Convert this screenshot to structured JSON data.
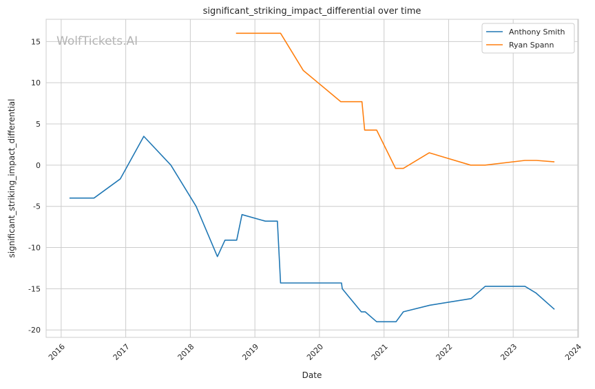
{
  "chart_data": {
    "type": "line",
    "title": "significant_striking_impact_differential over time",
    "xlabel": "Date",
    "ylabel": "significant_striking_impact_differential",
    "xlim": [
      "2015-10-08",
      "2024-01-05"
    ],
    "ylim": [
      -20.9,
      17.7
    ],
    "x_ticks": [
      "2016",
      "2017",
      "2018",
      "2019",
      "2020",
      "2021",
      "2022",
      "2023",
      "2024"
    ],
    "y_ticks": [
      -20,
      -15,
      -10,
      -5,
      0,
      5,
      10,
      15
    ],
    "grid": true,
    "legend_placement": "top-right",
    "watermark": "WolfTickets.AI",
    "series": [
      {
        "name": "Anthony Smith",
        "color": "#1f77b4",
        "x": [
          "2016-02-17",
          "2016-07-05",
          "2016-12-01",
          "2017-04-13",
          "2017-09-13",
          "2018-02-03",
          "2018-06-03",
          "2018-07-16",
          "2018-09-20",
          "2018-10-20",
          "2019-03-01",
          "2019-05-08",
          "2019-05-26",
          "2020-05-05",
          "2020-05-09",
          "2020-08-25",
          "2020-09-16",
          "2020-11-20",
          "2021-03-10",
          "2021-04-20",
          "2021-09-17",
          "2022-05-08",
          "2022-07-27",
          "2023-03-08",
          "2023-05-09",
          "2023-08-22"
        ],
        "y": [
          -4.0,
          -4.0,
          -1.67,
          3.5,
          0.0,
          -5.0,
          -11.1,
          -9.1,
          -9.1,
          -6.0,
          -6.8,
          -6.8,
          -14.3,
          -14.3,
          -15.0,
          -17.8,
          -17.8,
          -19.0,
          -19.0,
          -17.8,
          -17.0,
          -16.2,
          -14.7,
          -14.7,
          -15.5,
          -17.5
        ]
      },
      {
        "name": "Ryan Spann",
        "color": "#ff7f0e",
        "x": [
          "2018-09-16",
          "2019-05-26",
          "2019-10-01",
          "2020-05-01",
          "2020-08-29",
          "2020-09-13",
          "2020-11-20",
          "2021-03-07",
          "2021-04-20",
          "2021-09-13",
          "2022-05-05",
          "2022-07-27",
          "2023-03-08",
          "2023-05-12",
          "2023-08-22"
        ],
        "y": [
          16.0,
          16.0,
          11.5,
          7.7,
          7.7,
          4.26,
          4.26,
          -0.4,
          -0.4,
          1.5,
          0.0,
          0.0,
          0.57,
          0.57,
          0.4
        ]
      }
    ]
  }
}
